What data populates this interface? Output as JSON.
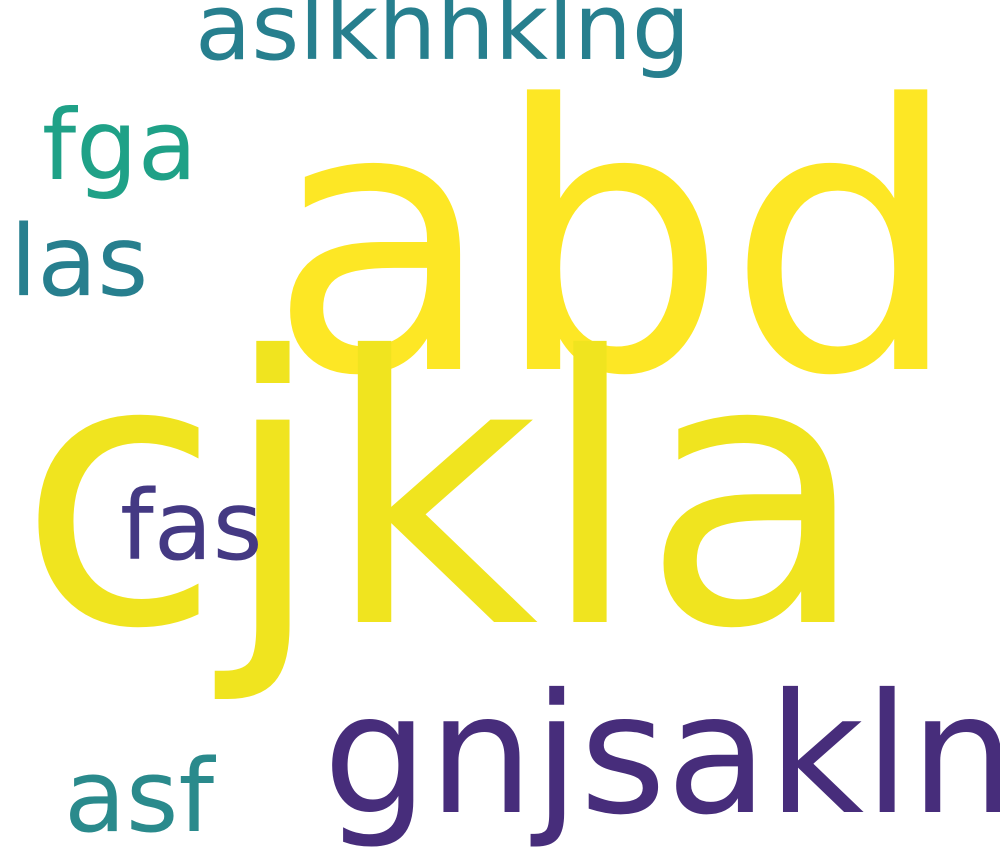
{
  "word_cloud": {
    "words": [
      {
        "text": "abd",
        "color": "#fde725"
      },
      {
        "text": "cjkla",
        "color": "#f0e41f"
      },
      {
        "text": "aslkhhklng",
        "color": "#277f8e"
      },
      {
        "text": "fga",
        "color": "#1fa187"
      },
      {
        "text": "las",
        "color": "#277f8e"
      },
      {
        "text": "fas",
        "color": "#443983"
      },
      {
        "text": "gnjsakln",
        "color": "#472d7b"
      },
      {
        "text": "asf",
        "color": "#2a8a8c"
      }
    ]
  }
}
